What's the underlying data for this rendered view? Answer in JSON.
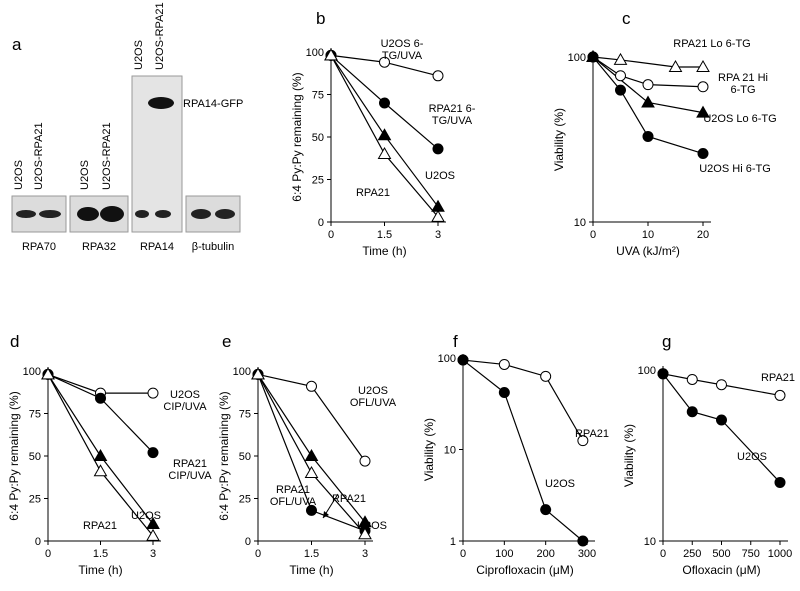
{
  "panel_a": {
    "label": "a",
    "blots": [
      {
        "name": "RPA70",
        "lanes": [
          "U2OS",
          "U2OS-RPA21"
        ]
      },
      {
        "name": "RPA32",
        "lanes": [
          "U2OS",
          "U2OS-RPA21"
        ]
      },
      {
        "name": "RPA14",
        "lanes": [
          "U2OS",
          "U2OS-RPA21"
        ],
        "band_label": "RPA14-GFP"
      },
      {
        "name": "β-tubulin"
      }
    ]
  },
  "chart_data": [
    {
      "panel": "b",
      "type": "line",
      "color": "#000000",
      "log_y": false,
      "xlabel": "Time (h)",
      "ylabel": "6:4 Py:Py remaining (%)",
      "xlim": [
        0,
        3
      ],
      "ylim": [
        0,
        100
      ],
      "xticks": [
        0,
        1.5,
        3
      ],
      "yticks": [
        0,
        25,
        50,
        75,
        100
      ],
      "series": [
        {
          "name": "U2OS 6-TG/UVA",
          "marker": "circle-open",
          "x": [
            0,
            1.5,
            3
          ],
          "values": [
            98,
            94,
            86
          ]
        },
        {
          "name": "RPA21 6-TG/UVA",
          "marker": "circle-filled",
          "x": [
            0,
            1.5,
            3
          ],
          "values": [
            98,
            70,
            43
          ]
        },
        {
          "name": "U2OS",
          "marker": "triangle-filled",
          "x": [
            0,
            1.5,
            3
          ],
          "values": [
            98,
            51,
            9
          ]
        },
        {
          "name": "RPA21",
          "marker": "triangle-open",
          "x": [
            0,
            1.5,
            3
          ],
          "values": [
            98,
            40,
            3
          ]
        }
      ]
    },
    {
      "panel": "c",
      "type": "line",
      "color": "#000000",
      "log_y": true,
      "xlabel": "UVA (kJ/m²)",
      "ylabel": "Viability (%)",
      "xlim": [
        0,
        20
      ],
      "ylim": [
        10,
        100
      ],
      "xticks": [
        0,
        10,
        20
      ],
      "yticks": [
        10,
        100
      ],
      "series": [
        {
          "name": "RPA21 Lo 6-TG",
          "marker": "triangle-open",
          "x": [
            0,
            5,
            15,
            20
          ],
          "values": [
            100,
            96,
            87,
            87
          ]
        },
        {
          "name": "RPA 21 Hi 6-TG",
          "marker": "circle-open",
          "x": [
            0,
            5,
            10,
            20
          ],
          "values": [
            100,
            77,
            68,
            66
          ]
        },
        {
          "name": "U2OS Lo 6-TG",
          "marker": "triangle-filled",
          "x": [
            0,
            10,
            20
          ],
          "values": [
            100,
            53,
            46
          ]
        },
        {
          "name": "U2OS Hi 6-TG",
          "marker": "circle-filled",
          "x": [
            0,
            5,
            10,
            20
          ],
          "values": [
            100,
            63,
            33,
            26
          ]
        }
      ]
    },
    {
      "panel": "d",
      "type": "line",
      "color": "#000000",
      "log_y": false,
      "xlabel": "Time (h)",
      "ylabel": "6:4 Py:Py remaining (%)",
      "xlim": [
        0,
        3
      ],
      "ylim": [
        0,
        100
      ],
      "xticks": [
        0,
        1.5,
        3
      ],
      "yticks": [
        0,
        25,
        50,
        75,
        100
      ],
      "series": [
        {
          "name": "U2OS CIP/UVA",
          "marker": "circle-open",
          "x": [
            0,
            1.5,
            3
          ],
          "values": [
            98,
            87,
            87
          ]
        },
        {
          "name": "RPA21 CIP/UVA",
          "marker": "circle-filled",
          "x": [
            0,
            1.5,
            3
          ],
          "values": [
            98,
            84,
            52
          ]
        },
        {
          "name": "U2OS",
          "marker": "triangle-filled",
          "x": [
            0,
            1.5,
            3
          ],
          "values": [
            98,
            50,
            10
          ]
        },
        {
          "name": "RPA21",
          "marker": "triangle-open",
          "x": [
            0,
            1.5,
            3
          ],
          "values": [
            98,
            41,
            3
          ]
        }
      ]
    },
    {
      "panel": "e",
      "type": "line",
      "color": "#000000",
      "log_y": false,
      "xlabel": "Time (h)",
      "ylabel": "6:4 Py:Py remaining (%)",
      "xlim": [
        0,
        3
      ],
      "ylim": [
        0,
        100
      ],
      "xticks": [
        0,
        1.5,
        3
      ],
      "yticks": [
        0,
        25,
        50,
        75,
        100
      ],
      "series": [
        {
          "name": "U2OS OFL/UVA",
          "marker": "circle-open",
          "x": [
            0,
            1.5,
            3
          ],
          "values": [
            98,
            91,
            47
          ]
        },
        {
          "name": "RPA21 OFL/UVA",
          "marker": "circle-filled",
          "x": [
            0,
            1.5,
            3
          ],
          "values": [
            98,
            18,
            6
          ]
        },
        {
          "name": "U2OS",
          "marker": "triangle-filled",
          "x": [
            0,
            1.5,
            3
          ],
          "values": [
            98,
            50,
            11
          ]
        },
        {
          "name": "RPA21",
          "marker": "triangle-open",
          "x": [
            0,
            1.5,
            3
          ],
          "values": [
            98,
            40,
            4
          ]
        }
      ]
    },
    {
      "panel": "f",
      "type": "line",
      "color": "#000000",
      "log_y": true,
      "xlabel": "Ciprofloxacin (μM)",
      "ylabel": "Viability (%)",
      "xlim": [
        0,
        300
      ],
      "ylim": [
        1,
        100
      ],
      "xticks": [
        0,
        100,
        200,
        300
      ],
      "yticks": [
        1,
        10,
        100
      ],
      "series": [
        {
          "name": "RPA21",
          "marker": "circle-open",
          "x": [
            0,
            100,
            200,
            290
          ],
          "values": [
            95,
            85,
            63,
            12.5
          ]
        },
        {
          "name": "U2OS",
          "marker": "circle-filled",
          "x": [
            0,
            100,
            200,
            290
          ],
          "values": [
            95,
            42,
            2.2,
            1
          ]
        }
      ]
    },
    {
      "panel": "g",
      "type": "line",
      "color": "#000000",
      "log_y": true,
      "xlabel": "Ofloxacin (μM)",
      "ylabel": "Viability (%)",
      "xlim": [
        0,
        1000
      ],
      "ylim": [
        10,
        100
      ],
      "xticks": [
        0,
        250,
        500,
        750,
        1000
      ],
      "yticks": [
        10,
        100
      ],
      "series": [
        {
          "name": "RPA21",
          "marker": "circle-open",
          "x": [
            0,
            250,
            500,
            1000
          ],
          "values": [
            95,
            88,
            82,
            71
          ]
        },
        {
          "name": "U2OS",
          "marker": "circle-filled",
          "x": [
            0,
            250,
            500,
            1000
          ],
          "values": [
            95,
            57,
            51,
            22
          ]
        }
      ]
    }
  ]
}
